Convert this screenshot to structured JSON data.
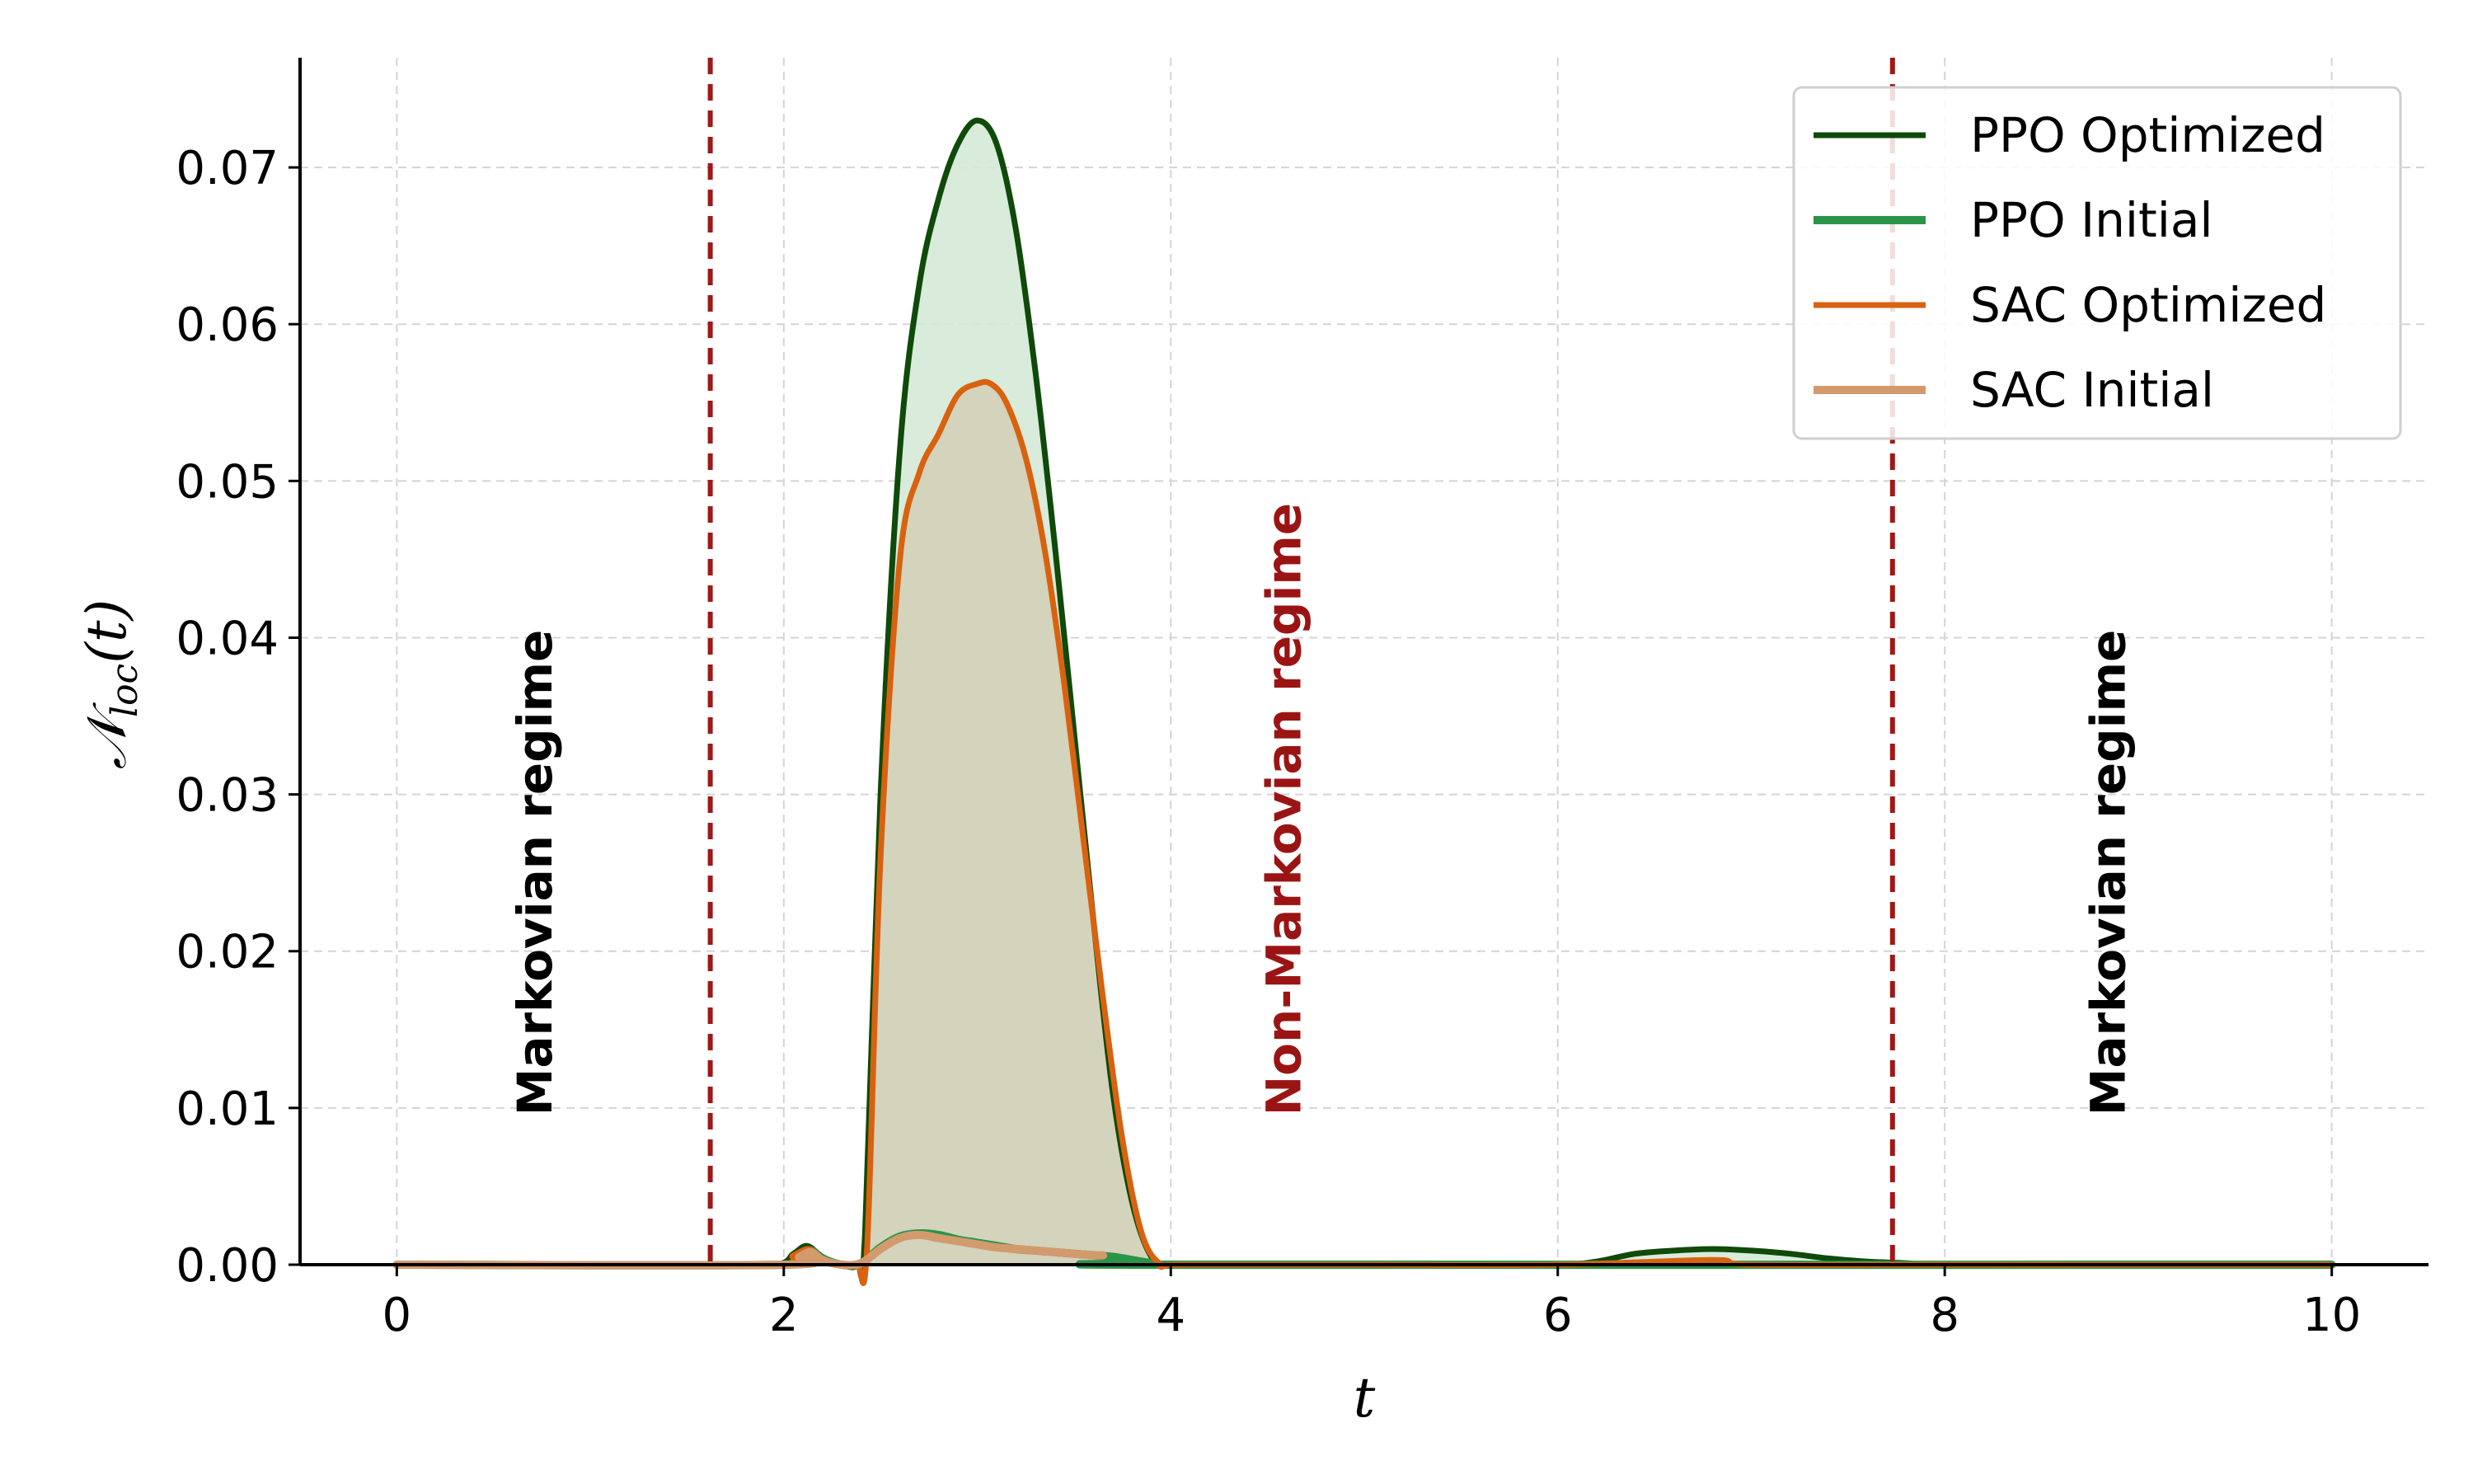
{
  "chart_data": {
    "type": "line",
    "xlabel": "t",
    "ylabel_main": "𝒩",
    "ylabel_sub": "loc",
    "ylabel_tail": "(t)",
    "xlim": [
      -0.5,
      10.5
    ],
    "ylim": [
      0,
      0.077
    ],
    "grid": true,
    "legend_position": "top-right",
    "x_ticks": [
      0,
      2,
      4,
      6,
      8,
      10
    ],
    "x_tick_labels": [
      "0",
      "2",
      "4",
      "6",
      "8",
      "10"
    ],
    "y_ticks": [
      0,
      0.01,
      0.02,
      0.03,
      0.04,
      0.05,
      0.06,
      0.07
    ],
    "y_tick_labels": [
      "0.00",
      "0.01",
      "0.02",
      "0.03",
      "0.04",
      "0.05",
      "0.06",
      "0.07"
    ],
    "vlines": [
      {
        "x": 1.62,
        "color": "#a01818"
      },
      {
        "x": 7.73,
        "color": "#a01818"
      }
    ],
    "annotations": [
      {
        "text": "Markovian regime",
        "x": 0.8,
        "y": 0.0095,
        "color": "#000000"
      },
      {
        "text": "Non-Markovian regime",
        "x": 4.67,
        "y": 0.0095,
        "color": "#9b1414"
      },
      {
        "text": "Markovian regime",
        "x": 8.93,
        "y": 0.0095,
        "color": "#000000"
      }
    ],
    "series": [
      {
        "name": "PPO Optimized",
        "color": "#0f4a0a",
        "fill": "#d5e9d6",
        "x": [
          0,
          0.5,
          1,
          1.5,
          1.95,
          2.05,
          2.12,
          2.2,
          2.3,
          2.38,
          2.42,
          2.5,
          2.6,
          2.7,
          2.8,
          2.9,
          3.0,
          3.1,
          3.2,
          3.3,
          3.4,
          3.5,
          3.6,
          3.7,
          3.8,
          3.9,
          4.0,
          4.5,
          5,
          5.5,
          6.0,
          6.2,
          6.4,
          6.6,
          6.8,
          7.0,
          7.2,
          7.4,
          7.6,
          7.8,
          8.0,
          9,
          10
        ],
        "y": [
          0,
          0,
          0,
          0,
          0,
          0.0007,
          0.0012,
          0.0005,
          0,
          0,
          0.002,
          0.03,
          0.052,
          0.0625,
          0.068,
          0.0715,
          0.073,
          0.0715,
          0.066,
          0.057,
          0.046,
          0.034,
          0.022,
          0.011,
          0.004,
          0.0005,
          0,
          0,
          0,
          0,
          0,
          0.0002,
          0.0007,
          0.0009,
          0.001,
          0.0009,
          0.0007,
          0.0004,
          0.0002,
          0.0001,
          0,
          0,
          0
        ]
      },
      {
        "name": "PPO Initial",
        "color": "#2a9448",
        "x": [
          0,
          2.0,
          2.08,
          2.14,
          2.2,
          2.3,
          2.4,
          2.5,
          2.6,
          2.7,
          2.8,
          2.9,
          3.0,
          3.1,
          3.2,
          3.3,
          3.4,
          3.5,
          3.6,
          3.7,
          3.8,
          3.9,
          4.0,
          10
        ],
        "y": [
          0,
          0,
          0.0006,
          0.0009,
          0.0004,
          0,
          0.0001,
          0.0011,
          0.0018,
          0.002,
          0.0019,
          0.0016,
          0.0014,
          0.0012,
          0.001,
          0.0009,
          0.0008,
          0.0007,
          0.0006,
          0.0005,
          0.0003,
          0.0001,
          0,
          0
        ]
      },
      {
        "name": "SAC Optimized",
        "color": "#d8620f",
        "fill": "#d3d0b8",
        "x": [
          0,
          1,
          1.95,
          2.05,
          2.13,
          2.2,
          2.3,
          2.38,
          2.43,
          2.5,
          2.6,
          2.7,
          2.8,
          2.9,
          3.0,
          3.07,
          3.15,
          3.25,
          3.35,
          3.45,
          3.55,
          3.65,
          3.75,
          3.85,
          3.95,
          4.05,
          5,
          6,
          6.8,
          7,
          8,
          9,
          10
        ],
        "y": [
          0,
          0,
          0,
          0.0006,
          0.001,
          0.0004,
          0,
          0,
          0.001,
          0.026,
          0.045,
          0.0505,
          0.053,
          0.0555,
          0.0562,
          0.0562,
          0.055,
          0.0515,
          0.0455,
          0.037,
          0.027,
          0.017,
          0.008,
          0.002,
          0,
          0,
          0,
          0,
          0.0003,
          0,
          0,
          0,
          0
        ]
      },
      {
        "name": "SAC Initial",
        "color": "#d39a6e",
        "x": [
          0,
          2.0,
          2.08,
          2.14,
          2.2,
          2.3,
          2.4,
          2.5,
          2.6,
          2.7,
          2.8,
          2.9,
          3.0,
          3.1,
          3.2,
          3.3,
          3.4,
          3.5,
          3.6,
          3.65
        ],
        "y": [
          0,
          0,
          0.0005,
          0.0008,
          0.0003,
          0,
          0.0001,
          0.001,
          0.0017,
          0.0019,
          0.0017,
          0.0015,
          0.0013,
          0.0011,
          0.001,
          0.0009,
          0.0008,
          0.0007,
          0.0006,
          0.0006
        ]
      }
    ]
  }
}
